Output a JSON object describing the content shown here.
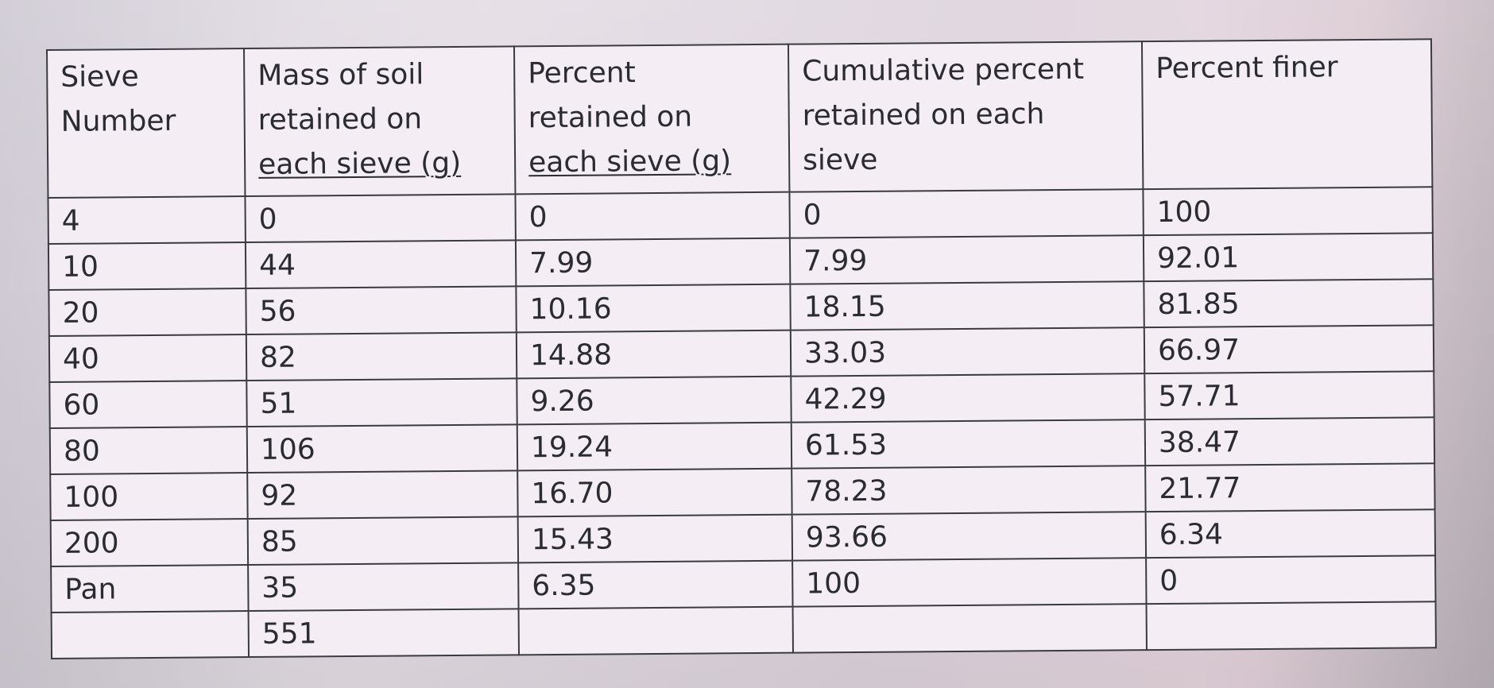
{
  "table": {
    "headers": [
      [
        "Sieve",
        "Number"
      ],
      [
        "Mass of soil",
        "retained on",
        "each sieve (g)"
      ],
      [
        "Percent",
        "retained on",
        "each sieve (g)"
      ],
      [
        "Cumulative percent",
        "retained on each",
        "sieve"
      ],
      [
        "Percent finer"
      ]
    ],
    "rows": [
      [
        "4",
        "0",
        "0",
        "0",
        "100"
      ],
      [
        "10",
        "44",
        "7.99",
        "7.99",
        "92.01"
      ],
      [
        "20",
        "56",
        "10.16",
        "18.15",
        "81.85"
      ],
      [
        "40",
        "82",
        "14.88",
        "33.03",
        "66.97"
      ],
      [
        "60",
        "51",
        "9.26",
        "42.29",
        "57.71"
      ],
      [
        "80",
        "106",
        "19.24",
        "61.53",
        "38.47"
      ],
      [
        "100",
        "92",
        "16.70",
        "78.23",
        "21.77"
      ],
      [
        "200",
        "85",
        "15.43",
        "93.66",
        "6.34"
      ],
      [
        "Pan",
        "35",
        "6.35",
        "100",
        "0"
      ],
      [
        "",
        "551",
        "",
        "",
        ""
      ]
    ]
  }
}
